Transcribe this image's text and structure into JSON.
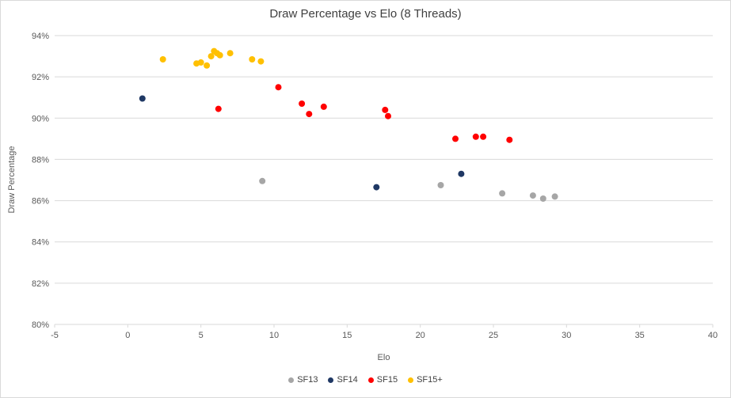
{
  "chart_data": {
    "type": "scatter",
    "title": "Draw Percentage vs Elo (8 Threads)",
    "xlabel": "Elo",
    "ylabel": "Draw Percentage",
    "xlim": [
      -5,
      40
    ],
    "ylim": [
      80,
      94
    ],
    "xticks": [
      -5,
      0,
      5,
      10,
      15,
      20,
      25,
      30,
      35,
      40
    ],
    "yticks": [
      80,
      82,
      84,
      86,
      88,
      90,
      92,
      94
    ],
    "ytick_suffix": "%",
    "grid": "horizontal",
    "gridline_color": "#d9d9d9",
    "legend_position": "bottom",
    "series": [
      {
        "name": "SF13",
        "color": "#a6a6a6",
        "points": [
          [
            9.2,
            86.95
          ],
          [
            21.4,
            86.75
          ],
          [
            25.6,
            86.35
          ],
          [
            27.7,
            86.25
          ],
          [
            28.4,
            86.1
          ],
          [
            29.2,
            86.2
          ]
        ]
      },
      {
        "name": "SF14",
        "color": "#1f3864",
        "points": [
          [
            1.0,
            90.95
          ],
          [
            17.0,
            86.65
          ],
          [
            22.8,
            87.3
          ]
        ]
      },
      {
        "name": "SF15",
        "color": "#ff0000",
        "points": [
          [
            6.2,
            90.45
          ],
          [
            10.3,
            91.5
          ],
          [
            11.9,
            90.7
          ],
          [
            12.4,
            90.2
          ],
          [
            13.4,
            90.55
          ],
          [
            17.6,
            90.4
          ],
          [
            17.8,
            90.1
          ],
          [
            22.4,
            89.0
          ],
          [
            23.8,
            89.1
          ],
          [
            24.3,
            89.1
          ],
          [
            26.1,
            88.95
          ]
        ]
      },
      {
        "name": "SF15+",
        "color": "#ffc000",
        "points": [
          [
            2.4,
            92.85
          ],
          [
            4.7,
            92.65
          ],
          [
            5.0,
            92.7
          ],
          [
            5.4,
            92.55
          ],
          [
            5.7,
            93.0
          ],
          [
            5.9,
            93.25
          ],
          [
            6.1,
            93.15
          ],
          [
            6.3,
            93.05
          ],
          [
            7.0,
            93.15
          ],
          [
            8.5,
            92.85
          ],
          [
            9.1,
            92.75
          ]
        ]
      }
    ]
  }
}
